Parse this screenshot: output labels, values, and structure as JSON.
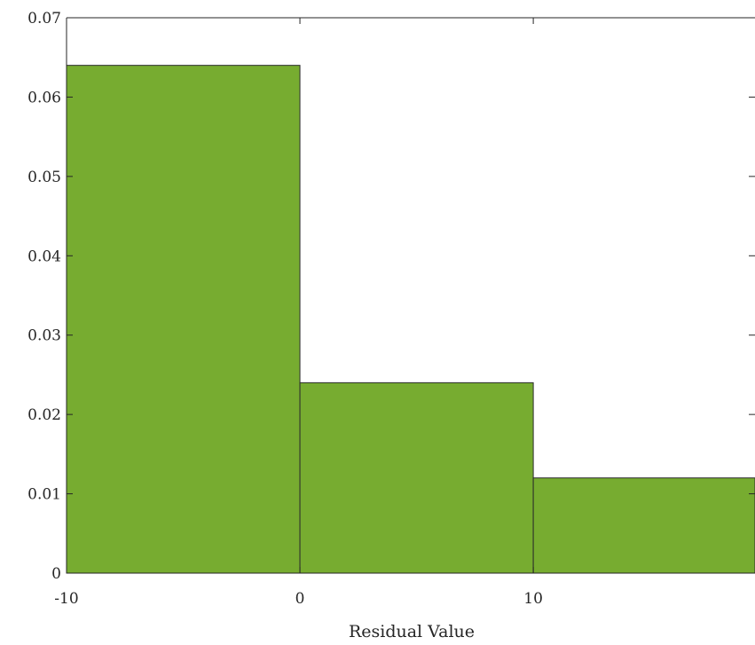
{
  "chart_data": {
    "type": "bar",
    "subtype": "histogram",
    "bin_edges": [
      -10,
      0,
      10,
      20
    ],
    "values": [
      0.064,
      0.024,
      0.012
    ],
    "xlabel": "Residual Value",
    "ylabel": "",
    "xlim": [
      -10,
      19.5
    ],
    "ylim": [
      0,
      0.07
    ],
    "x_ticks": [
      "-10",
      "0",
      "10"
    ],
    "y_ticks": [
      "0",
      "0.01",
      "0.02",
      "0.03",
      "0.04",
      "0.05",
      "0.06",
      "0.07"
    ],
    "grid": false,
    "bar_color": "#77ac30",
    "edge_color": "#2b2b2b"
  }
}
